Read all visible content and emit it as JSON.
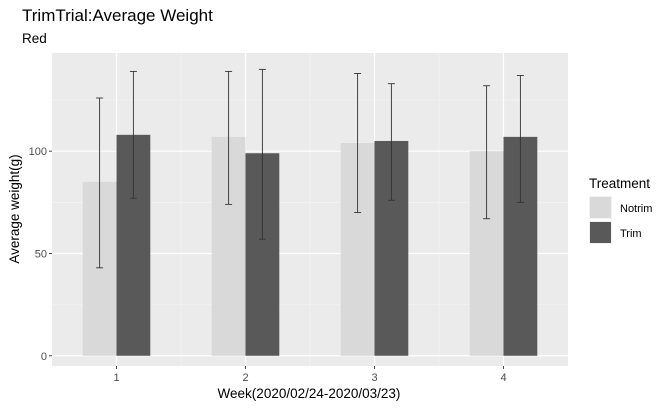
{
  "chart_data": {
    "type": "bar",
    "title": "TrimTrial:Average Weight",
    "subtitle": "Red",
    "xlabel": "Week(2020/02/24-2020/03/23)",
    "ylabel": "Average weight(g)",
    "categories": [
      "1",
      "2",
      "3",
      "4"
    ],
    "ylim": [
      -5,
      148
    ],
    "yticks": [
      0,
      50,
      100
    ],
    "grid": true,
    "legend_position": "right",
    "legend_title": "Treatment",
    "series": [
      {
        "name": "Notrim",
        "color": "#d9d9d9",
        "values": [
          85,
          107,
          104,
          100
        ],
        "error_low": [
          43,
          74,
          70,
          67
        ],
        "error_high": [
          126,
          139,
          138,
          132
        ]
      },
      {
        "name": "Trim",
        "color": "#595959",
        "values": [
          108,
          99,
          105,
          107
        ],
        "error_low": [
          77,
          57,
          76,
          75
        ],
        "error_high": [
          139,
          140,
          133,
          137
        ]
      }
    ]
  }
}
